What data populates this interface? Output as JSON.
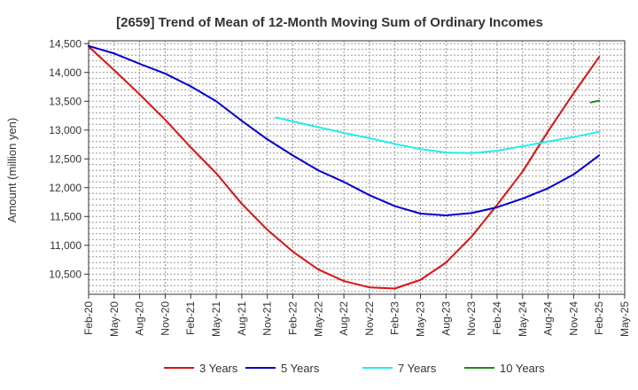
{
  "chart_data": {
    "type": "line",
    "title": "[2659]  Trend of Mean of 12-Month Moving Sum of Ordinary Incomes",
    "xlabel": "",
    "ylabel": "Amount (million yen)",
    "ylim": [
      10150,
      14550
    ],
    "x_ticks": [
      "Feb-20",
      "May-20",
      "Aug-20",
      "Nov-20",
      "Feb-21",
      "May-21",
      "Aug-21",
      "Nov-21",
      "Feb-22",
      "May-22",
      "Aug-22",
      "Nov-22",
      "Feb-23",
      "May-23",
      "Aug-23",
      "Nov-23",
      "Feb-24",
      "May-24",
      "Aug-24",
      "Nov-24",
      "Feb-25",
      "May-25"
    ],
    "y_ticks": [
      10500,
      11000,
      11500,
      12000,
      12500,
      13000,
      13500,
      14000,
      14500
    ],
    "y_tick_labels": [
      "10,500",
      "11,000",
      "11,500",
      "12,000",
      "12,500",
      "13,000",
      "13,500",
      "14,000",
      "14,500"
    ],
    "grid": true,
    "legend_position": "bottom",
    "series": [
      {
        "name": "3 Years",
        "color": "#dd1111",
        "points": [
          [
            0,
            14450
          ],
          [
            1,
            14040
          ],
          [
            2,
            13620
          ],
          [
            3,
            13180
          ],
          [
            4,
            12700
          ],
          [
            5,
            12250
          ],
          [
            6,
            11720
          ],
          [
            7,
            11270
          ],
          [
            8,
            10890
          ],
          [
            9,
            10580
          ],
          [
            10,
            10380
          ],
          [
            11,
            10270
          ],
          [
            12,
            10250
          ],
          [
            13,
            10400
          ],
          [
            14,
            10700
          ],
          [
            15,
            11150
          ],
          [
            16,
            11700
          ],
          [
            17,
            12280
          ],
          [
            18,
            12980
          ],
          [
            19,
            13640
          ],
          [
            20,
            14270
          ]
        ]
      },
      {
        "name": "5 Years",
        "color": "#0000cc",
        "points": [
          [
            0,
            14460
          ],
          [
            1,
            14330
          ],
          [
            2,
            14150
          ],
          [
            3,
            13980
          ],
          [
            4,
            13760
          ],
          [
            5,
            13500
          ],
          [
            6,
            13160
          ],
          [
            7,
            12840
          ],
          [
            8,
            12560
          ],
          [
            9,
            12300
          ],
          [
            10,
            12100
          ],
          [
            11,
            11870
          ],
          [
            12,
            11680
          ],
          [
            13,
            11550
          ],
          [
            14,
            11520
          ],
          [
            15,
            11560
          ],
          [
            16,
            11660
          ],
          [
            17,
            11810
          ],
          [
            18,
            11990
          ],
          [
            19,
            12230
          ],
          [
            20,
            12560
          ]
        ]
      },
      {
        "name": "7 Years",
        "color": "#22eeee",
        "points": [
          [
            7.33,
            13220
          ],
          [
            8,
            13150
          ],
          [
            9,
            13050
          ],
          [
            10,
            12950
          ],
          [
            11,
            12860
          ],
          [
            12,
            12760
          ],
          [
            13,
            12670
          ],
          [
            14,
            12610
          ],
          [
            15,
            12600
          ],
          [
            16,
            12640
          ],
          [
            17,
            12720
          ],
          [
            18,
            12800
          ],
          [
            19,
            12880
          ],
          [
            20,
            12970
          ]
        ]
      },
      {
        "name": "10 Years",
        "color": "#228822",
        "points": [
          [
            19.67,
            13480
          ],
          [
            20,
            13510
          ]
        ]
      }
    ]
  }
}
